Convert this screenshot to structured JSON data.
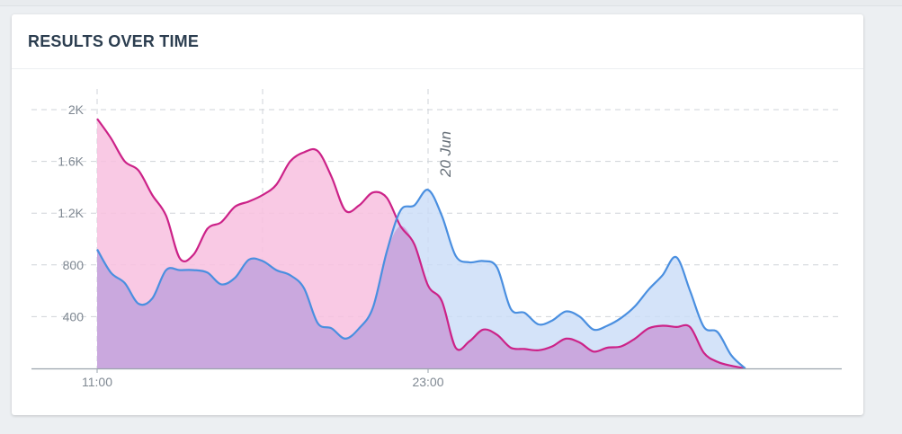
{
  "card": {
    "title": "RESULTS OVER TIME"
  },
  "colors": {
    "series_a_line": "#cc2288",
    "series_a_fill": "#f8bfdf",
    "series_b_line": "#4a8fe0",
    "series_b_fill": "#c9dcf8",
    "overlap_fill": "#c9a3dc",
    "grid": "#cfd3d8",
    "axis": "#9aa3ad",
    "tick_text": "#7f8892"
  },
  "chart_data": {
    "type": "area",
    "x_tick_labels": [
      "11:00",
      "23:00"
    ],
    "y_tick_labels": [
      "400",
      "800",
      "1.2K",
      "1.6K",
      "2K"
    ],
    "ylim": [
      0,
      2000
    ],
    "xlim": [
      11,
      38
    ],
    "annotation": {
      "label": "20 Jun",
      "x": 23
    },
    "grid": true,
    "x_gridlines": [
      11,
      17,
      23
    ],
    "x": [
      11,
      11.5,
      12,
      12.5,
      13,
      13.5,
      14,
      14.5,
      15,
      15.5,
      16,
      16.5,
      17,
      17.5,
      18,
      18.5,
      19,
      19.5,
      20,
      20.5,
      21,
      21.5,
      22,
      22.5,
      23,
      23.5,
      24,
      24.5,
      25,
      25.5,
      26,
      26.5,
      27,
      27.5,
      28,
      28.5,
      29,
      29.5,
      30,
      30.5,
      31,
      31.5,
      32,
      32.5,
      33,
      33.5,
      34,
      34.5
    ],
    "series": [
      {
        "values": [
          1930,
          1780,
          1600,
          1530,
          1340,
          1180,
          850,
          880,
          1080,
          1130,
          1250,
          1290,
          1340,
          1420,
          1600,
          1670,
          1680,
          1480,
          1220,
          1260,
          1360,
          1320,
          1100,
          960,
          640,
          520,
          160,
          210,
          300,
          260,
          160,
          150,
          140,
          170,
          230,
          200,
          130,
          160,
          170,
          230,
          310,
          330,
          320,
          320,
          120,
          50,
          20,
          0
        ]
      },
      {
        "values": [
          920,
          740,
          660,
          500,
          540,
          760,
          760,
          760,
          740,
          650,
          700,
          840,
          830,
          760,
          720,
          620,
          350,
          310,
          230,
          310,
          470,
          900,
          1220,
          1260,
          1380,
          1180,
          870,
          820,
          830,
          780,
          460,
          430,
          340,
          370,
          440,
          400,
          300,
          330,
          390,
          480,
          610,
          720,
          860,
          600,
          320,
          280,
          100,
          0
        ]
      }
    ]
  }
}
